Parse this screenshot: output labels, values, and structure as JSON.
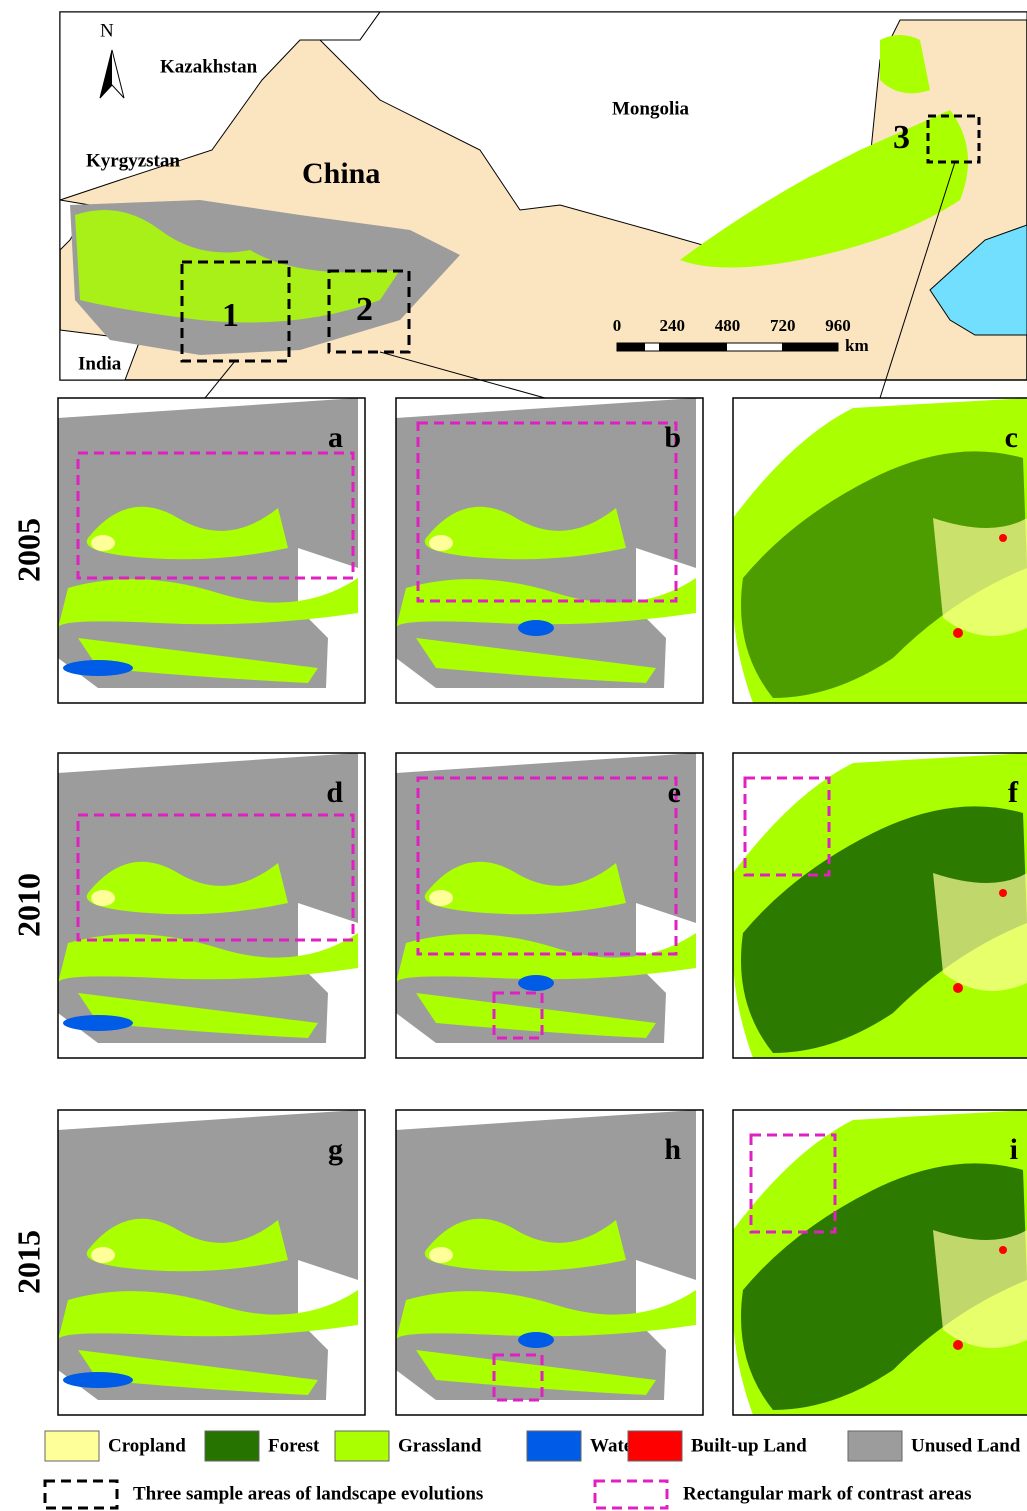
{
  "map": {
    "north": "N",
    "countries": [
      "Kazakhstan",
      "Mongolia",
      "Kyrgyzstan",
      "China",
      "India"
    ],
    "sample_areas": [
      "1",
      "2",
      "3"
    ],
    "scale": {
      "ticks": [
        0,
        240,
        480,
        720,
        960
      ],
      "unit": "km"
    }
  },
  "years": [
    "2005",
    "2010",
    "2015"
  ],
  "panels": [
    "a",
    "b",
    "c",
    "d",
    "e",
    "f",
    "g",
    "h",
    "i"
  ],
  "legend": {
    "classes": [
      {
        "label": "Cropland",
        "color": "#ffff99"
      },
      {
        "label": "Forest",
        "color": "#267300"
      },
      {
        "label": "Grassland",
        "color": "#aaff00"
      },
      {
        "label": "Water",
        "color": "#005ce6"
      },
      {
        "label": "Built-up Land",
        "color": "#ff0000"
      },
      {
        "label": "Unused Land",
        "color": "#9c9c9c"
      }
    ],
    "boxes": [
      {
        "label": "Three sample areas of landscape evolutions",
        "color": "#000000"
      },
      {
        "label": "Rectangular mark of contrast areas",
        "color": "#e020c0"
      }
    ]
  }
}
